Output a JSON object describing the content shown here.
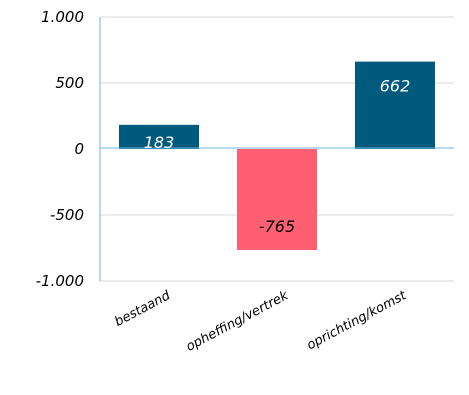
{
  "chart_data": {
    "type": "bar",
    "categories": [
      "bestaand",
      "opheffing/vertrek",
      "oprichting/komst"
    ],
    "values": [
      183,
      -765,
      662
    ],
    "data_labels": [
      "183",
      "-765",
      "662"
    ],
    "bar_colors": [
      "#005a7d",
      "#ff6071",
      "#005a7d"
    ],
    "data_label_colors": [
      "#ffffff",
      "#000000",
      "#ffffff"
    ],
    "ylim": [
      -1000,
      1000
    ],
    "yticks": [
      1000,
      500,
      0,
      -500,
      -1000
    ],
    "ytick_labels": [
      "1.000",
      "500",
      "0",
      "-500",
      "-1.000"
    ],
    "grid": true,
    "legend": "none",
    "title": "",
    "xlabel": "",
    "ylabel": ""
  },
  "colors": {
    "axis": "#6fb6de",
    "grid": "#dadada"
  }
}
